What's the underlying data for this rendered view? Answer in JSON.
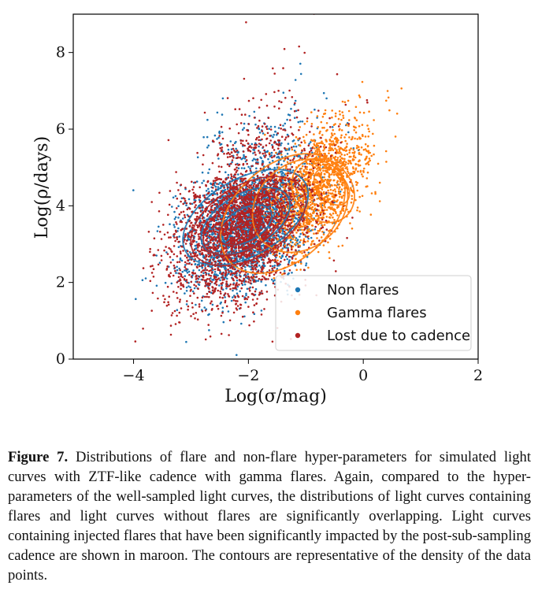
{
  "chart_data": {
    "type": "scatter",
    "title": "",
    "xlabel": "Log(σ/mag)",
    "ylabel": "Log(ρ/days)",
    "xlim": [
      -5.05,
      2.0
    ],
    "ylim": [
      0,
      9.0
    ],
    "xticks": [
      "−4",
      "−2",
      "0",
      "2"
    ],
    "xtick_values": [
      -4,
      -2,
      0,
      2
    ],
    "yticks": [
      "0",
      "2",
      "4",
      "6",
      "8"
    ],
    "ytick_values": [
      0,
      2,
      4,
      6,
      8
    ],
    "grid": false,
    "legend_position": "bottom-right",
    "series": [
      {
        "name": "Non flares",
        "color": "#1f77b4",
        "center": [
          -2.0,
          3.6
        ],
        "spread": [
          0.55,
          0.9
        ],
        "correlation": 0.35,
        "approx_points": 2600,
        "contour_levels": [
          [
            -2.05,
            3.5,
            0.5,
            0.42
          ],
          [
            -2.05,
            3.6,
            0.85,
            0.7
          ],
          [
            -2.05,
            3.7,
            1.2,
            1.0
          ]
        ]
      },
      {
        "name": "Gamma flares",
        "color": "#ff7f0e",
        "center": [
          -0.8,
          4.5
        ],
        "spread": [
          0.45,
          0.9
        ],
        "correlation": 0.55,
        "approx_points": 1500,
        "contour_levels": [
          [
            -0.55,
            4.5,
            0.25,
            0.55
          ],
          [
            -0.7,
            4.4,
            0.5,
            0.9
          ],
          [
            -1.1,
            4.0,
            0.9,
            1.1
          ],
          [
            -1.4,
            3.8,
            1.25,
            1.25
          ]
        ]
      },
      {
        "name": "Lost due to cadence",
        "color": "#b22222",
        "center": [
          -2.1,
          3.5
        ],
        "spread": [
          0.6,
          1.0
        ],
        "correlation": 0.35,
        "approx_points": 2800,
        "contour_levels": [
          [
            -2.15,
            3.4,
            0.4,
            0.35
          ],
          [
            -2.1,
            3.5,
            0.75,
            0.65
          ],
          [
            -2.0,
            3.6,
            1.1,
            0.95
          ]
        ]
      }
    ]
  },
  "caption": {
    "label": "Figure 7.",
    "text": "Distributions of flare and non-flare hyper-parameters for simulated light curves with ZTF-like cadence with gamma flares. Again, compared to the hyper-parameters of the well-sampled light curves, the distributions of light curves containing flares and light curves without flares are significantly overlapping. Light curves containing injected flares that have been significantly impacted by the post-sub-sampling cadence are shown in maroon. The contours are representative of the density of the data points."
  }
}
